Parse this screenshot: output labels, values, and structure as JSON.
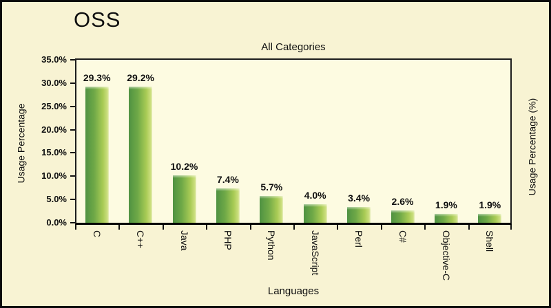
{
  "window": {
    "title": "OSS"
  },
  "colors": {
    "outer_bg": "#F8F3D3",
    "plot_bg": "#FDFBE1",
    "frame_border": "#0a0a0a",
    "axis": "#111111",
    "text": "#0f0f0f",
    "bar_gradient": [
      "#4F9242",
      "#6FA947",
      "#A9CB55",
      "#CCDF7F",
      "#E9EFC0"
    ]
  },
  "chart_data": {
    "type": "bar",
    "title": "All Categories",
    "xlabel": "Languages",
    "ylabel_left": "Usage Percentage",
    "ylabel_right": "Usage Percentage (%)",
    "categories": [
      "C",
      "C++",
      "Java",
      "PHP",
      "Python",
      "JavaScript",
      "Perl",
      "C#",
      "Objective-C",
      "Shell"
    ],
    "values": [
      29.3,
      29.2,
      10.2,
      7.4,
      5.7,
      4.0,
      3.4,
      2.6,
      1.9,
      1.9
    ],
    "data_labels": [
      "29.3%",
      "29.2%",
      "10.2%",
      "7.4%",
      "5.7%",
      "4.0%",
      "3.4%",
      "2.6%",
      "1.9%",
      "1.9%"
    ],
    "y_ticks": [
      "0.0%",
      "5.0%",
      "10.0%",
      "15.0%",
      "20.0%",
      "25.0%",
      "30.0%",
      "35.0%"
    ],
    "y_tick_step": 5,
    "ylim": [
      0,
      35
    ],
    "grid": false,
    "legend": null
  }
}
